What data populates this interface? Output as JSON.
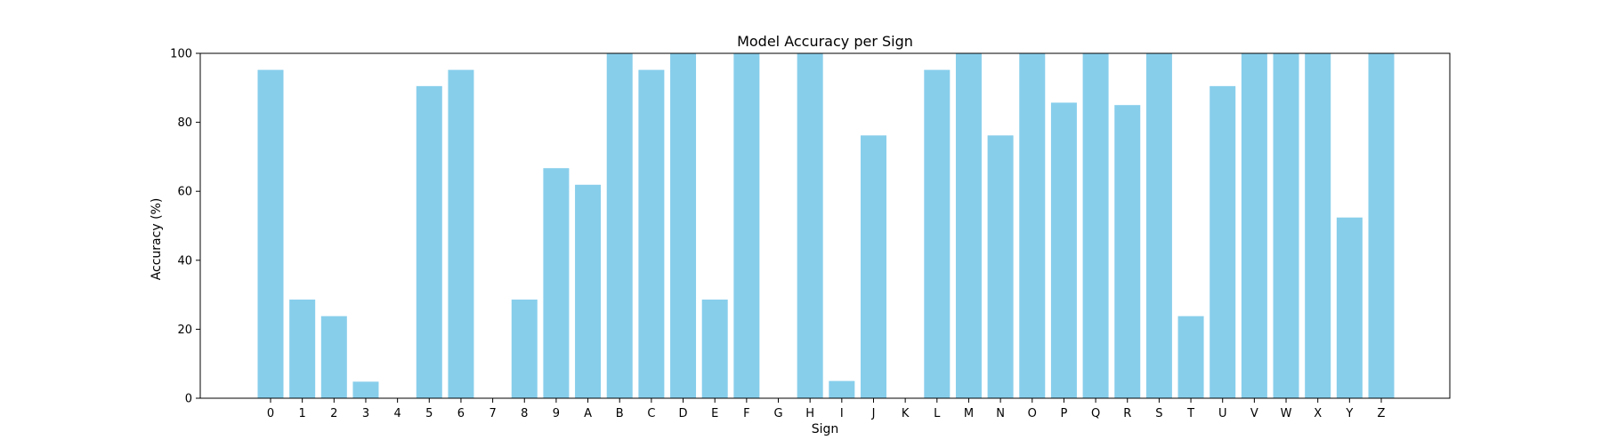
{
  "chart_data": {
    "type": "bar",
    "title": "Model Accuracy per Sign",
    "xlabel": "Sign",
    "ylabel": "Accuracy (%)",
    "ylim": [
      0,
      100
    ],
    "yticks": [
      0,
      20,
      40,
      60,
      80,
      100
    ],
    "grid": false,
    "bar_color": "#87CEEB",
    "categories": [
      "0",
      "1",
      "2",
      "3",
      "4",
      "5",
      "6",
      "7",
      "8",
      "9",
      "A",
      "B",
      "C",
      "D",
      "E",
      "F",
      "G",
      "H",
      "I",
      "J",
      "K",
      "L",
      "M",
      "N",
      "O",
      "P",
      "Q",
      "R",
      "S",
      "T",
      "U",
      "V",
      "W",
      "X",
      "Y",
      "Z"
    ],
    "values": [
      95.2,
      28.6,
      23.8,
      4.8,
      0,
      90.5,
      95.2,
      0,
      28.6,
      66.7,
      61.9,
      100,
      95.2,
      100,
      28.6,
      100,
      0,
      100,
      5.0,
      76.2,
      0,
      95.2,
      100,
      76.2,
      100,
      85.7,
      100,
      85.0,
      100,
      23.8,
      90.5,
      100,
      100,
      100,
      52.4,
      100
    ]
  }
}
